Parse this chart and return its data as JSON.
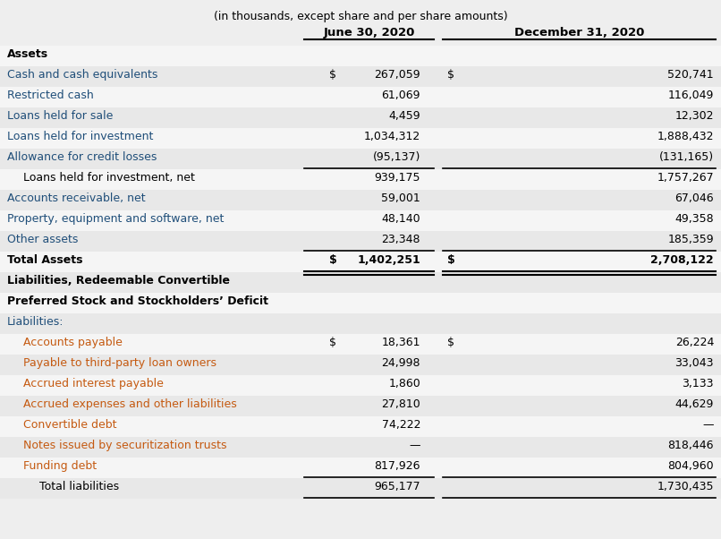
{
  "subtitle": "(in thousands, except share and per share amounts)",
  "col1_header": "June 30, 2020",
  "col2_header": "December 31, 2020",
  "background_color": "#eeeeee",
  "row_bg_light": "#f5f5f5",
  "row_bg_dark": "#e8e8e8",
  "rows": [
    {
      "label": "Assets",
      "val1": "",
      "val2": "",
      "style": "section_header",
      "indent": 0,
      "dollar1": false,
      "dollar2": false
    },
    {
      "label": "Cash and cash equivalents",
      "val1": "267,059",
      "val2": "520,741",
      "style": "normal_blue",
      "indent": 0,
      "dollar1": true,
      "dollar2": true
    },
    {
      "label": "Restricted cash",
      "val1": "61,069",
      "val2": "116,049",
      "style": "normal_blue",
      "indent": 0,
      "dollar1": false,
      "dollar2": false
    },
    {
      "label": "Loans held for sale",
      "val1": "4,459",
      "val2": "12,302",
      "style": "normal_blue",
      "indent": 0,
      "dollar1": false,
      "dollar2": false
    },
    {
      "label": "Loans held for investment",
      "val1": "1,034,312",
      "val2": "1,888,432",
      "style": "normal_blue",
      "indent": 0,
      "dollar1": false,
      "dollar2": false
    },
    {
      "label": "Allowance for credit losses",
      "val1": "(95,137)",
      "val2": "(131,165)",
      "style": "normal_blue",
      "indent": 0,
      "dollar1": false,
      "dollar2": false,
      "line_below": true
    },
    {
      "label": "Loans held for investment, net",
      "val1": "939,175",
      "val2": "1,757,267",
      "style": "normal_black",
      "indent": 1,
      "dollar1": false,
      "dollar2": false
    },
    {
      "label": "Accounts receivable, net",
      "val1": "59,001",
      "val2": "67,046",
      "style": "normal_blue",
      "indent": 0,
      "dollar1": false,
      "dollar2": false
    },
    {
      "label": "Property, equipment and software, net",
      "val1": "48,140",
      "val2": "49,358",
      "style": "normal_blue",
      "indent": 0,
      "dollar1": false,
      "dollar2": false
    },
    {
      "label": "Other assets",
      "val1": "23,348",
      "val2": "185,359",
      "style": "normal_blue",
      "indent": 0,
      "dollar1": false,
      "dollar2": false,
      "line_below": true
    },
    {
      "label": "Total Assets",
      "val1": "1,402,251",
      "val2": "2,708,122",
      "style": "total",
      "indent": 0,
      "dollar1": true,
      "dollar2": true,
      "double_line": true
    },
    {
      "label": "Liabilities, Redeemable Convertible",
      "val1": "",
      "val2": "",
      "style": "section_header",
      "indent": 0,
      "dollar1": false,
      "dollar2": false
    },
    {
      "label": "Preferred Stock and Stockholders’ Deficit",
      "val1": "",
      "val2": "",
      "style": "section_header",
      "indent": 0,
      "dollar1": false,
      "dollar2": false
    },
    {
      "label": "Liabilities:",
      "val1": "",
      "val2": "",
      "style": "normal_blue",
      "indent": 0,
      "dollar1": false,
      "dollar2": false
    },
    {
      "label": "Accounts payable",
      "val1": "18,361",
      "val2": "26,224",
      "style": "normal_orange",
      "indent": 1,
      "dollar1": true,
      "dollar2": true
    },
    {
      "label": "Payable to third-party loan owners",
      "val1": "24,998",
      "val2": "33,043",
      "style": "normal_orange",
      "indent": 1,
      "dollar1": false,
      "dollar2": false
    },
    {
      "label": "Accrued interest payable",
      "val1": "1,860",
      "val2": "3,133",
      "style": "normal_orange",
      "indent": 1,
      "dollar1": false,
      "dollar2": false
    },
    {
      "label": "Accrued expenses and other liabilities",
      "val1": "27,810",
      "val2": "44,629",
      "style": "normal_orange",
      "indent": 1,
      "dollar1": false,
      "dollar2": false
    },
    {
      "label": "Convertible debt",
      "val1": "74,222",
      "val2": "—",
      "style": "normal_orange",
      "indent": 1,
      "dollar1": false,
      "dollar2": false
    },
    {
      "label": "Notes issued by securitization trusts",
      "val1": "—",
      "val2": "818,446",
      "style": "normal_orange",
      "indent": 1,
      "dollar1": false,
      "dollar2": false
    },
    {
      "label": "Funding debt",
      "val1": "817,926",
      "val2": "804,960",
      "style": "normal_orange",
      "indent": 1,
      "dollar1": false,
      "dollar2": false,
      "line_below": true
    },
    {
      "label": "Total liabilities",
      "val1": "965,177",
      "val2": "1,730,435",
      "style": "subtotal",
      "indent": 2,
      "dollar1": false,
      "dollar2": false,
      "line_below": true
    }
  ],
  "color_black": "#000000",
  "color_blue": "#1F4E79",
  "color_orange": "#C55A11",
  "line_color": "#000000",
  "font_size": 9.0,
  "header_font_size": 9.5
}
